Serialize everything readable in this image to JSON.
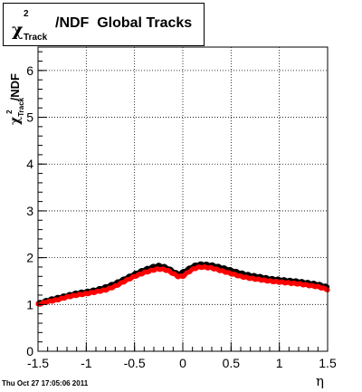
{
  "title": {
    "symbol": "χ",
    "superscript": "2",
    "subscript": "Track",
    "rest": "/NDF  Global Tracks"
  },
  "ylabel": {
    "symbol": "χ",
    "superscript": "2",
    "subscript": "Track",
    "rest": "/NDF"
  },
  "xlabel": "η",
  "datestamp": "Thu Oct 27 17:05:06 2011",
  "chart_data": {
    "type": "scatter",
    "xlim": [
      -1.5,
      1.5
    ],
    "ylim": [
      0,
      6.5
    ],
    "x_ticks": [
      "-1.5",
      "-1",
      "-0.5",
      "0",
      "0.5",
      "1",
      "1.5"
    ],
    "y_ticks": [
      "0",
      "1",
      "2",
      "3",
      "4",
      "5",
      "6"
    ],
    "grid": true,
    "colors": {
      "series_black": "#000000",
      "series_red": "#ff0000"
    },
    "series": [
      {
        "color": "black",
        "x": [
          -1.5,
          -1.4,
          -1.3,
          -1.2,
          -1.1,
          -1.0,
          -0.9,
          -0.8,
          -0.7,
          -0.6,
          -0.5,
          -0.4,
          -0.3,
          -0.25,
          -0.2,
          -0.15,
          -0.1,
          -0.05,
          0.0,
          0.05,
          0.1,
          0.15,
          0.2,
          0.25,
          0.3,
          0.4,
          0.5,
          0.6,
          0.7,
          0.8,
          0.9,
          1.0,
          1.1,
          1.2,
          1.3,
          1.4,
          1.5
        ],
        "y": [
          1.03,
          1.1,
          1.15,
          1.2,
          1.25,
          1.28,
          1.32,
          1.38,
          1.46,
          1.56,
          1.66,
          1.75,
          1.82,
          1.84,
          1.82,
          1.78,
          1.72,
          1.66,
          1.7,
          1.76,
          1.82,
          1.86,
          1.87,
          1.86,
          1.85,
          1.8,
          1.74,
          1.68,
          1.63,
          1.6,
          1.56,
          1.54,
          1.52,
          1.5,
          1.47,
          1.44,
          1.38
        ]
      },
      {
        "color": "red",
        "x": [
          -1.5,
          -1.4,
          -1.3,
          -1.2,
          -1.1,
          -1.0,
          -0.9,
          -0.8,
          -0.7,
          -0.6,
          -0.5,
          -0.4,
          -0.3,
          -0.25,
          -0.2,
          -0.15,
          -0.1,
          -0.05,
          0.0,
          0.05,
          0.1,
          0.15,
          0.2,
          0.25,
          0.3,
          0.4,
          0.5,
          0.6,
          0.7,
          0.8,
          0.9,
          1.0,
          1.1,
          1.2,
          1.3,
          1.4,
          1.5
        ],
        "y": [
          1.0,
          1.06,
          1.1,
          1.16,
          1.2,
          1.23,
          1.27,
          1.31,
          1.39,
          1.5,
          1.6,
          1.68,
          1.74,
          1.76,
          1.75,
          1.72,
          1.66,
          1.6,
          1.6,
          1.68,
          1.75,
          1.79,
          1.8,
          1.79,
          1.78,
          1.72,
          1.66,
          1.6,
          1.56,
          1.53,
          1.5,
          1.48,
          1.46,
          1.44,
          1.41,
          1.38,
          1.32
        ]
      }
    ]
  }
}
